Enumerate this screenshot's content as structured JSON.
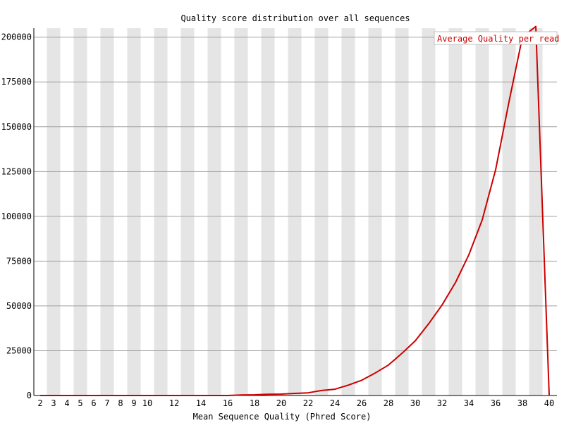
{
  "chart_data": {
    "type": "line",
    "title": "Quality score distribution over all sequences",
    "xlabel": "Mean Sequence Quality (Phred Score)",
    "ylabel": "",
    "xlim": [
      2,
      40
    ],
    "ylim": [
      0,
      205000
    ],
    "x_ticks": [
      2,
      3,
      4,
      5,
      6,
      7,
      8,
      9,
      10,
      12,
      14,
      16,
      18,
      20,
      22,
      24,
      26,
      28,
      30,
      32,
      34,
      36,
      38,
      40
    ],
    "y_ticks": [
      0,
      25000,
      50000,
      75000,
      100000,
      125000,
      150000,
      175000,
      200000
    ],
    "y_tick_labels": [
      "0",
      "25000",
      "50000",
      "75000",
      "100000",
      "125000",
      "150000",
      "175000",
      "200000"
    ],
    "grid": true,
    "legend_position": "top-right",
    "series": [
      {
        "name": "Average Quality per read",
        "color": "#cc0000",
        "x": [
          2,
          3,
          4,
          5,
          6,
          7,
          8,
          9,
          10,
          11,
          12,
          13,
          14,
          15,
          16,
          17,
          18,
          19,
          20,
          21,
          22,
          23,
          24,
          25,
          26,
          27,
          28,
          29,
          30,
          31,
          32,
          33,
          34,
          35,
          36,
          37,
          38,
          39,
          40
        ],
        "values": [
          0,
          0,
          0,
          0,
          0,
          0,
          0,
          0,
          0,
          0,
          0,
          0,
          0,
          0,
          0,
          300,
          400,
          700,
          800,
          1200,
          1500,
          2800,
          3500,
          5800,
          8500,
          12500,
          17000,
          23500,
          30500,
          40000,
          50500,
          63000,
          78500,
          98000,
          126000,
          164000,
          200000,
          206000,
          0
        ]
      }
    ]
  },
  "colors": {
    "stripe": "#e5e5e5",
    "gridline": "#a0a0a0",
    "axis": "#000000",
    "series": "#cc0000"
  }
}
